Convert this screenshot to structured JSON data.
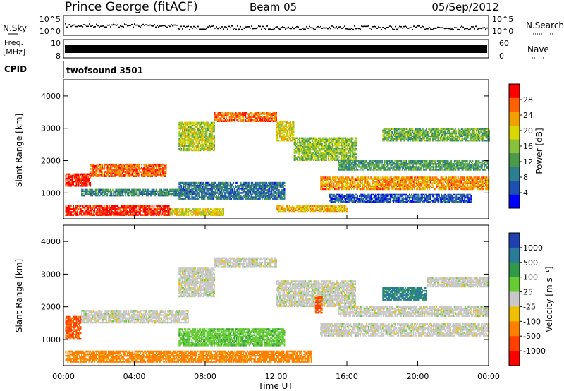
{
  "header": {
    "station": "Prince George (fitACF)",
    "beam": "Beam 05",
    "date": "05/Sep/2012"
  },
  "top_panels": {
    "nsky": {
      "label": "N.Sky",
      "right_label": "N.Search",
      "ticks_left": [
        "10^5",
        "10^0"
      ],
      "ticks_right": [
        "10^5",
        "10^0"
      ]
    },
    "freq": {
      "label_line1": "Freq.",
      "label_line2": "[MHz]",
      "right_label": "Nave",
      "ticks_left": [
        "10",
        "8"
      ],
      "ticks_right": [
        "60",
        "0"
      ]
    },
    "cpid": {
      "label": "CPID",
      "value": "twofsound 3501"
    }
  },
  "chart_data": [
    {
      "type": "heatmap",
      "name": "power",
      "ylabel": "Slant Range [km]",
      "ylim": [
        200,
        4500
      ],
      "yticks": [
        1000,
        2000,
        3000,
        4000
      ],
      "xlim_hours": [
        0,
        24
      ],
      "colorbar": {
        "label": "Power [dB]",
        "ticks": [
          "28",
          "24",
          "20",
          "16",
          "12",
          "8",
          "4"
        ],
        "range": [
          0,
          32
        ],
        "colors": [
          "#0000ff",
          "#1f4fb0",
          "#2c7f8f",
          "#4a9a4a",
          "#88c23c",
          "#d8d800",
          "#f0a000",
          "#ff6000",
          "#ff0000"
        ]
      },
      "echo_bands": [
        {
          "t0": 0.1,
          "t1": 1.5,
          "r0": 1200,
          "r1": 1600,
          "level": 30
        },
        {
          "t0": 1.5,
          "t1": 5.8,
          "r0": 1500,
          "r1": 1900,
          "level": 26
        },
        {
          "t0": 0.1,
          "t1": 6.0,
          "r0": 300,
          "r1": 600,
          "level": 30
        },
        {
          "t0": 6.0,
          "t1": 9.0,
          "r0": 300,
          "r1": 500,
          "level": 20
        },
        {
          "t0": 1.0,
          "t1": 7.0,
          "r0": 900,
          "r1": 1100,
          "level": 10
        },
        {
          "t0": 6.5,
          "t1": 12.5,
          "r0": 800,
          "r1": 1300,
          "level": 8
        },
        {
          "t0": 8.5,
          "t1": 12.0,
          "r0": 3200,
          "r1": 3500,
          "level": 26
        },
        {
          "t0": 6.5,
          "t1": 8.5,
          "r0": 2300,
          "r1": 3200,
          "level": 18
        },
        {
          "t0": 12.0,
          "t1": 13.0,
          "r0": 2600,
          "r1": 3200,
          "level": 20
        },
        {
          "t0": 13.0,
          "t1": 16.5,
          "r0": 2000,
          "r1": 2700,
          "level": 16
        },
        {
          "t0": 14.5,
          "t1": 24.0,
          "r0": 1100,
          "r1": 1500,
          "level": 24
        },
        {
          "t0": 15.5,
          "t1": 24.0,
          "r0": 1700,
          "r1": 2000,
          "level": 12
        },
        {
          "t0": 18.0,
          "t1": 24.0,
          "r0": 2600,
          "r1": 3000,
          "level": 14
        },
        {
          "t0": 12.0,
          "t1": 16.0,
          "r0": 400,
          "r1": 600,
          "level": 22
        },
        {
          "t0": 15.0,
          "t1": 23.0,
          "r0": 700,
          "r1": 950,
          "level": 6
        }
      ]
    },
    {
      "type": "heatmap",
      "name": "velocity",
      "ylabel": "Slant Range [km]",
      "ylim": [
        200,
        4500
      ],
      "yticks": [
        1000,
        2000,
        3000,
        4000
      ],
      "xlim_hours": [
        0,
        24
      ],
      "xticks": [
        "00:00",
        "04:00",
        "08:00",
        "12:00",
        "16:00",
        "20:00",
        "00:00"
      ],
      "xlabel": "Time UT",
      "colorbar": {
        "label": "Velocity [m s⁻¹]",
        "ticks": [
          "1000",
          "500",
          "100",
          "25",
          "-25",
          "-100",
          "-500",
          "-1000"
        ],
        "colors": [
          "#2040b0",
          "#2a7a9a",
          "#2e9a4a",
          "#66cc33",
          "#c8c8c8",
          "#f0c000",
          "#ff8000",
          "#ff4000",
          "#ff0000"
        ]
      },
      "echo_bands": [
        {
          "t0": 0.1,
          "t1": 1.0,
          "r0": 1000,
          "r1": 1700,
          "level": -600
        },
        {
          "t0": 1.0,
          "t1": 7.0,
          "r0": 1500,
          "r1": 1900,
          "level": 0
        },
        {
          "t0": 0.1,
          "t1": 14.0,
          "r0": 300,
          "r1": 650,
          "level": -150
        },
        {
          "t0": 6.5,
          "t1": 12.5,
          "r0": 800,
          "r1": 1300,
          "level": 80
        },
        {
          "t0": 8.5,
          "t1": 12.0,
          "r0": 3200,
          "r1": 3500,
          "level": 0
        },
        {
          "t0": 6.5,
          "t1": 8.5,
          "r0": 2300,
          "r1": 3200,
          "level": 0
        },
        {
          "t0": 12.0,
          "t1": 16.5,
          "r0": 2000,
          "r1": 2800,
          "level": 0
        },
        {
          "t0": 14.5,
          "t1": 24.0,
          "r0": 1100,
          "r1": 1500,
          "level": 0
        },
        {
          "t0": 15.5,
          "t1": 24.0,
          "r0": 1700,
          "r1": 2000,
          "level": 0
        },
        {
          "t0": 18.0,
          "t1": 20.5,
          "r0": 2200,
          "r1": 2600,
          "level": 600
        },
        {
          "t0": 20.5,
          "t1": 24.0,
          "r0": 2600,
          "r1": 2900,
          "level": 0
        },
        {
          "t0": 14.2,
          "t1": 14.6,
          "r0": 1800,
          "r1": 2300,
          "level": -600
        }
      ]
    }
  ]
}
